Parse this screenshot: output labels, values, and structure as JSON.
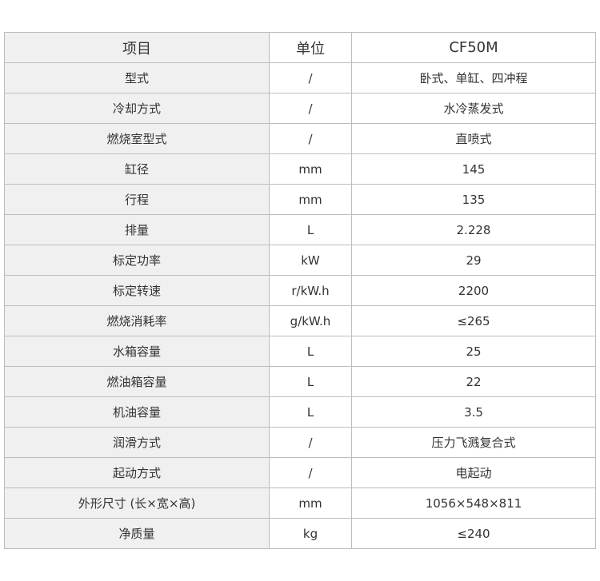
{
  "table": {
    "headers": [
      "项目",
      "单位",
      "CF50M"
    ],
    "rows": [
      [
        "型式",
        "/",
        "卧式、单缸、四冲程"
      ],
      [
        "冷却方式",
        "/",
        "水冷蒸发式"
      ],
      [
        "燃烧室型式",
        "/",
        "直喷式"
      ],
      [
        "缸径",
        "mm",
        "145"
      ],
      [
        "行程",
        "mm",
        "135"
      ],
      [
        "排量",
        "L",
        "2.228"
      ],
      [
        "标定功率",
        "kW",
        "29"
      ],
      [
        "标定转速",
        "r/kW.h",
        "2200"
      ],
      [
        "燃烧消耗率",
        "g/kW.h",
        "≤265"
      ],
      [
        "水箱容量",
        "L",
        "25"
      ],
      [
        "燃油箱容量",
        "L",
        "22"
      ],
      [
        "机油容量",
        "L",
        "3.5"
      ],
      [
        "润滑方式",
        "/",
        "压力飞溅复合式"
      ],
      [
        "起动方式",
        "/",
        "电起动"
      ],
      [
        "外形尺寸 (长×宽×高)",
        "mm",
        "1056×548×811"
      ],
      [
        "净质量",
        "kg",
        "≤240"
      ]
    ]
  },
  "colors": {
    "label_column_bg": "#f0f0f0",
    "border": "#bdbdbd"
  }
}
